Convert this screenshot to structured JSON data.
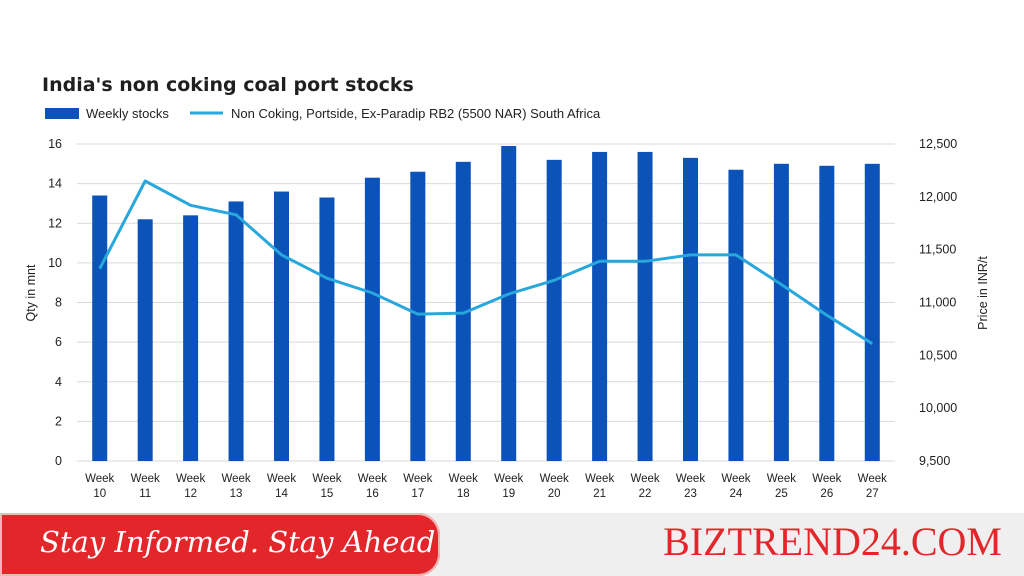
{
  "chart_data": {
    "type": "bar",
    "title": "India's non coking coal port stocks",
    "categories": [
      "Week 10",
      "Week 11",
      "Week 12",
      "Week 13",
      "Week 14",
      "Week 15",
      "Week 16",
      "Week 17",
      "Week 18",
      "Week 19",
      "Week 20",
      "Week 21",
      "Week 22",
      "Week 23",
      "Week 24",
      "Week 25",
      "Week 26",
      "Week 27"
    ],
    "series": [
      {
        "name": "Weekly stocks",
        "type": "bar",
        "axis": "left",
        "color": "#0b53b8",
        "values": [
          13.4,
          12.2,
          12.4,
          13.1,
          13.6,
          13.3,
          14.3,
          14.6,
          15.1,
          15.9,
          15.2,
          15.6,
          15.6,
          15.3,
          14.7,
          15.0,
          14.9,
          15.0
        ]
      },
      {
        "name": "Non Coking, Portside, Ex-Paradip RB2 (5500 NAR) South Africa",
        "type": "line",
        "axis": "right",
        "color": "#27a7dc",
        "values": [
          11320,
          12150,
          11920,
          11830,
          11450,
          11230,
          11090,
          10890,
          10900,
          11080,
          11210,
          11390,
          11390,
          11450,
          11450,
          11170,
          10880,
          10610
        ]
      }
    ],
    "ylabel": "Qty in mnt",
    "ylim": [
      0,
      16
    ],
    "yticks": [
      "0",
      "2",
      "4",
      "6",
      "8",
      "10",
      "12",
      "14",
      "16"
    ],
    "y2label": "Price in INR/t",
    "y2lim": [
      9500,
      12500
    ],
    "y2ticks": [
      "9,500",
      "10,000",
      "10,500",
      "11,000",
      "11,500",
      "12,000",
      "12,500"
    ],
    "grid": true,
    "legend": "top-left"
  },
  "banner": {
    "tagline": "Stay Informed. Stay Ahead",
    "brand": "BIZTREND24.COM"
  }
}
